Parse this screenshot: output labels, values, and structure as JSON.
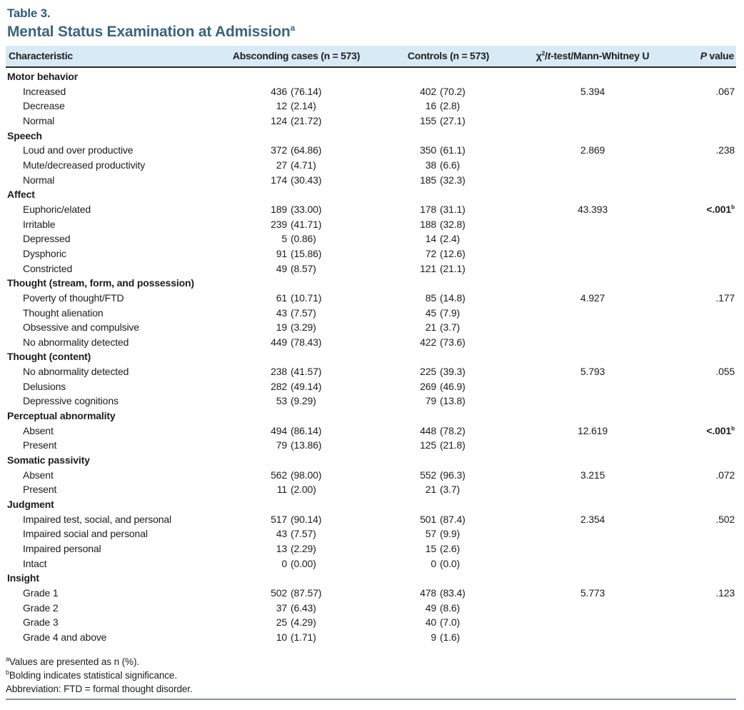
{
  "table_label": "Table 3.",
  "title": "Mental Status Examination at Admission",
  "title_superscript": "a",
  "colors": {
    "header_band_bg": "#d8eaf5",
    "table_label": "#2c5d77",
    "title": "#3a647e",
    "header_rule": "#2a2a2a",
    "bottom_rule": "#7e95a5"
  },
  "header": {
    "characteristic": "Characteristic",
    "absconding": "Absconding cases (n = 573)",
    "controls": "Controls (n = 573)",
    "test_chi": "χ",
    "test_sup": "2",
    "test_mid": "/",
    "test_t": "t",
    "test_rest": "-test/Mann-Whitney U",
    "p_italic": "P",
    "p_rest": " value"
  },
  "rows": [
    {
      "type": "section",
      "label": "Motor behavior"
    },
    {
      "type": "item",
      "label": "Increased",
      "a_n": "436",
      "a_p": "(76.14)",
      "c_n": "402",
      "c_p": "(70.2)",
      "stat": "5.394",
      "p": ".067",
      "p_sup": "",
      "p_bold": false
    },
    {
      "type": "item",
      "label": "Decrease",
      "a_n": "12",
      "a_p": "(2.14)",
      "c_n": "16",
      "c_p": "(2.8)"
    },
    {
      "type": "item",
      "label": "Normal",
      "a_n": "124",
      "a_p": "(21.72)",
      "c_n": "155",
      "c_p": "(27.1)"
    },
    {
      "type": "section",
      "label": "Speech"
    },
    {
      "type": "item",
      "label": "Loud and over productive",
      "a_n": "372",
      "a_p": "(64.86)",
      "c_n": "350",
      "c_p": "(61.1)",
      "stat": "2.869",
      "p": ".238",
      "p_sup": "",
      "p_bold": false
    },
    {
      "type": "item",
      "label": "Mute/decreased productivity",
      "a_n": "27",
      "a_p": "(4.71)",
      "c_n": "38",
      "c_p": "(6.6)"
    },
    {
      "type": "item",
      "label": "Normal",
      "a_n": "174",
      "a_p": "(30.43)",
      "c_n": "185",
      "c_p": "(32.3)"
    },
    {
      "type": "section",
      "label": "Affect"
    },
    {
      "type": "item",
      "label": "Euphoric/elated",
      "a_n": "189",
      "a_p": "(33.00)",
      "c_n": "178",
      "c_p": "(31.1)",
      "stat": "43.393",
      "p": "<.001",
      "p_sup": "b",
      "p_bold": true
    },
    {
      "type": "item",
      "label": "Irritable",
      "a_n": "239",
      "a_p": "(41.71)",
      "c_n": "188",
      "c_p": "(32.8)"
    },
    {
      "type": "item",
      "label": "Depressed",
      "a_n": "5",
      "a_p": "(0.86)",
      "c_n": "14",
      "c_p": "(2.4)"
    },
    {
      "type": "item",
      "label": "Dysphoric",
      "a_n": "91",
      "a_p": "(15.86)",
      "c_n": "72",
      "c_p": "(12.6)"
    },
    {
      "type": "item",
      "label": "Constricted",
      "a_n": "49",
      "a_p": "(8.57)",
      "c_n": "121",
      "c_p": "(21.1)"
    },
    {
      "type": "section",
      "label": "Thought (stream, form, and possession)"
    },
    {
      "type": "item",
      "label": "Poverty of thought/FTD",
      "a_n": "61",
      "a_p": "(10.71)",
      "c_n": "85",
      "c_p": "(14.8)",
      "stat": "4.927",
      "p": ".177",
      "p_sup": "",
      "p_bold": false
    },
    {
      "type": "item",
      "label": "Thought alienation",
      "a_n": "43",
      "a_p": "(7.57)",
      "c_n": "45",
      "c_p": "(7.9)"
    },
    {
      "type": "item",
      "label": "Obsessive and compulsive",
      "a_n": "19",
      "a_p": "(3.29)",
      "c_n": "21",
      "c_p": "(3.7)"
    },
    {
      "type": "item",
      "label": "No abnormality detected",
      "a_n": "449",
      "a_p": "(78.43)",
      "c_n": "422",
      "c_p": "(73.6)"
    },
    {
      "type": "section",
      "label": "Thought (content)"
    },
    {
      "type": "item",
      "label": "No abnormality detected",
      "a_n": "238",
      "a_p": "(41.57)",
      "c_n": "225",
      "c_p": "(39.3)",
      "stat": "5.793",
      "p": ".055",
      "p_sup": "",
      "p_bold": false
    },
    {
      "type": "item",
      "label": "Delusions",
      "a_n": "282",
      "a_p": "(49.14)",
      "c_n": "269",
      "c_p": "(46.9)"
    },
    {
      "type": "item",
      "label": "Depressive cognitions",
      "a_n": "53",
      "a_p": "(9.29)",
      "c_n": "79",
      "c_p": "(13.8)"
    },
    {
      "type": "section",
      "label": "Perceptual abnormality"
    },
    {
      "type": "item",
      "label": "Absent",
      "a_n": "494",
      "a_p": "(86.14)",
      "c_n": "448",
      "c_p": "(78.2)",
      "stat": "12.619",
      "p": "<.001",
      "p_sup": "b",
      "p_bold": true
    },
    {
      "type": "item",
      "label": "Present",
      "a_n": "79",
      "a_p": "(13.86)",
      "c_n": "125",
      "c_p": "(21.8)"
    },
    {
      "type": "section",
      "label": "Somatic passivity"
    },
    {
      "type": "item",
      "label": "Absent",
      "a_n": "562",
      "a_p": "(98.00)",
      "c_n": "552",
      "c_p": "(96.3)",
      "stat": "3.215",
      "p": ".072",
      "p_sup": "",
      "p_bold": false
    },
    {
      "type": "item",
      "label": "Present",
      "a_n": "11",
      "a_p": "(2.00)",
      "c_n": "21",
      "c_p": "(3.7)"
    },
    {
      "type": "section",
      "label": "Judgment"
    },
    {
      "type": "item",
      "label": "Impaired test, social, and personal",
      "a_n": "517",
      "a_p": "(90.14)",
      "c_n": "501",
      "c_p": "(87.4)",
      "stat": "2.354",
      "p": ".502",
      "p_sup": "",
      "p_bold": false
    },
    {
      "type": "item",
      "label": "Impaired social and personal",
      "a_n": "43",
      "a_p": "(7.57)",
      "c_n": "57",
      "c_p": "(9.9)"
    },
    {
      "type": "item",
      "label": "Impaired personal",
      "a_n": "13",
      "a_p": "(2.29)",
      "c_n": "15",
      "c_p": "(2.6)"
    },
    {
      "type": "item",
      "label": "Intact",
      "a_n": "0",
      "a_p": "(0.00)",
      "c_n": "0",
      "c_p": "(0.0)"
    },
    {
      "type": "section",
      "label": "Insight"
    },
    {
      "type": "item",
      "label": "Grade 1",
      "a_n": "502",
      "a_p": "(87.57)",
      "c_n": "478",
      "c_p": "(83.4)",
      "stat": "5.773",
      "p": ".123",
      "p_sup": "",
      "p_bold": false
    },
    {
      "type": "item",
      "label": "Grade 2",
      "a_n": "37",
      "a_p": "(6.43)",
      "c_n": "49",
      "c_p": "(8.6)"
    },
    {
      "type": "item",
      "label": "Grade 3",
      "a_n": "25",
      "a_p": "(4.29)",
      "c_n": "40",
      "c_p": "(7.0)"
    },
    {
      "type": "item",
      "label": "Grade 4 and above",
      "a_n": "10",
      "a_p": "(1.71)",
      "c_n": "9",
      "c_p": "(1.6)"
    }
  ],
  "footnotes": [
    {
      "sup": "a",
      "text": "Values are presented as n (%)."
    },
    {
      "sup": "b",
      "text": "Bolding indicates statistical significance."
    },
    {
      "sup": "",
      "text": "Abbreviation: FTD = formal thought disorder."
    }
  ]
}
